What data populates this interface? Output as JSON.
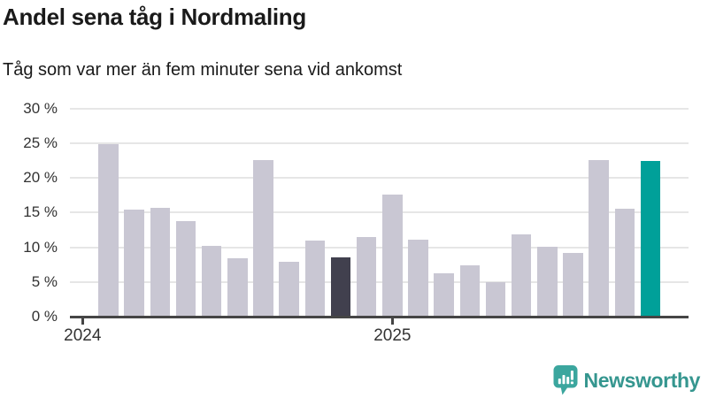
{
  "chart_data": {
    "type": "bar",
    "title": "Andel sena tåg i Nordmaling",
    "subtitle": "Tåg som var mer än fem minuter sena vid ankomst",
    "unit": "%",
    "categories": [
      "feb 2024",
      "mar 2024",
      "apr 2024",
      "maj 2024",
      "jun 2024",
      "jul 2024",
      "aug 2024",
      "sep 2024",
      "okt 2024",
      "nov 2024",
      "dec 2024",
      "jan 2025",
      "feb 2025",
      "mar 2025",
      "apr 2025",
      "maj 2025",
      "jun 2025",
      "jul 2025",
      "aug 2025",
      "sep 2025",
      "okt 2025",
      "nov 2025"
    ],
    "values": [
      24.9,
      15.4,
      15.7,
      13.8,
      10.2,
      8.4,
      22.6,
      7.9,
      11.0,
      8.6,
      11.5,
      17.6,
      11.1,
      6.2,
      7.4,
      5.0,
      11.9,
      10.1,
      9.2,
      22.6,
      15.5,
      22.4
    ],
    "ylim": [
      0,
      30
    ],
    "ytick_values": [
      0,
      5,
      10,
      15,
      20,
      25,
      30
    ],
    "ytick_labels": [
      "0 %",
      "5 %",
      "10 %",
      "15 %",
      "20 %",
      "25 %",
      "30 %"
    ],
    "xtick_labels": [
      "2024",
      "2025"
    ],
    "xtick_month_offsets": [
      0,
      12
    ],
    "first_bar_month_offset": 1,
    "grid": "horizontal",
    "legend": "none",
    "highlights": {
      "dark_index": 9,
      "accent_index": 21
    },
    "colors": {
      "bar_default": "#c9c7d3",
      "bar_highlight_dark": "#41404e",
      "bar_highlight_accent": "#00a099",
      "gridline": "#e6e6e6",
      "axis_line": "#454545",
      "axis_text": "#333333",
      "title_text": "#1a1a1a"
    }
  },
  "branding": {
    "name": "Newsworthy",
    "icon": "speech-bubble-bar-chart-icon",
    "color": "#3ba69e"
  }
}
